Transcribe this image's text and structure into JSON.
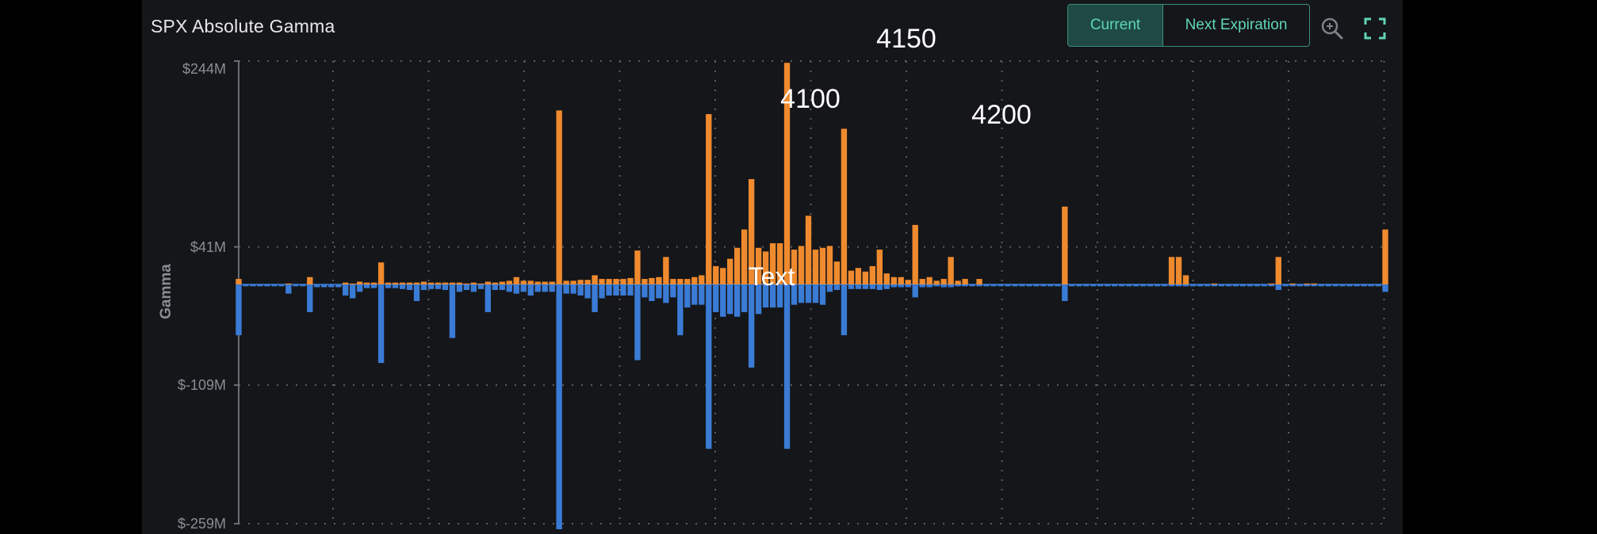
{
  "header": {
    "title": "SPX Absolute Gamma",
    "toggle": {
      "current_label": "Current",
      "next_label": "Next Expiration"
    }
  },
  "icons": {
    "zoom": "zoom-in-icon",
    "fullscreen": "fullscreen-icon"
  },
  "colors": {
    "positive": "#ef8a2e",
    "negative": "#3a7bd5",
    "accent": "#5fd6b8",
    "background": "#151619"
  },
  "chart_data": {
    "type": "bar",
    "title": "SPX Absolute Gamma",
    "ylabel": "Gamma",
    "xlabel": "",
    "yticks": [
      {
        "value": 244,
        "label": "$244M"
      },
      {
        "value": 41,
        "label": "$41M"
      },
      {
        "value": -109,
        "label": "$-109M"
      },
      {
        "value": -259,
        "label": "$-259M"
      }
    ],
    "ylim": [
      -259,
      244
    ],
    "grid": true,
    "annotations": [
      {
        "label": "4150",
        "strike": 4150
      },
      {
        "label": "4100",
        "strike": 4100
      },
      {
        "label": "4200",
        "strike": 4200
      },
      {
        "label": "Text"
      }
    ],
    "series": [
      {
        "color": "#ef8a2e",
        "values": [
          6,
          0,
          0,
          0,
          0,
          0,
          0,
          1,
          0,
          0,
          8,
          0,
          0,
          0,
          0,
          2,
          1,
          3,
          2,
          2,
          24,
          2,
          2,
          2,
          2,
          2,
          3,
          2,
          2,
          2,
          2,
          2,
          1,
          2,
          1,
          3,
          2,
          3,
          4,
          8,
          4,
          4,
          3,
          3,
          3,
          190,
          4,
          4,
          5,
          5,
          10,
          6,
          6,
          6,
          6,
          7,
          37,
          6,
          7,
          8,
          30,
          6,
          6,
          6,
          8,
          10,
          186,
          20,
          18,
          28,
          40,
          60,
          115,
          40,
          36,
          45,
          45,
          242,
          38,
          42,
          75,
          38,
          40,
          42,
          25,
          170,
          15,
          18,
          14,
          20,
          38,
          12,
          8,
          8,
          5,
          65,
          6,
          8,
          4,
          6,
          30,
          4,
          6,
          0,
          6,
          0,
          0,
          0,
          0,
          0,
          0,
          0,
          0,
          0,
          0,
          0,
          85,
          0,
          0,
          0,
          0,
          0,
          0,
          0,
          0,
          0,
          0,
          0,
          0,
          0,
          0,
          30,
          30,
          10,
          0,
          0,
          0,
          1,
          0,
          0,
          0,
          0,
          0,
          0,
          0,
          1,
          30,
          0,
          1,
          0,
          1,
          1,
          0,
          0,
          0,
          0,
          0,
          0,
          0,
          0,
          0,
          60
        ]
      },
      {
        "color": "#3a7bd5",
        "values": [
          -55,
          -2,
          -2,
          -2,
          -2,
          -2,
          -2,
          -10,
          -2,
          -2,
          -30,
          -3,
          -3,
          -3,
          -3,
          -12,
          -15,
          -8,
          -4,
          -4,
          -85,
          -4,
          -4,
          -5,
          -6,
          -18,
          -6,
          -5,
          -5,
          -6,
          -58,
          -8,
          -6,
          -8,
          -5,
          -30,
          -6,
          -6,
          -8,
          -10,
          -8,
          -12,
          -8,
          -8,
          -8,
          -265,
          -10,
          -10,
          -12,
          -15,
          -30,
          -15,
          -12,
          -12,
          -12,
          -12,
          -82,
          -14,
          -18,
          -15,
          -20,
          -14,
          -55,
          -25,
          -22,
          -22,
          -178,
          -30,
          -35,
          -32,
          -35,
          -30,
          -90,
          -32,
          -25,
          -25,
          -25,
          -178,
          -22,
          -20,
          -20,
          -20,
          -22,
          -8,
          -6,
          -55,
          -5,
          -5,
          -5,
          -5,
          -6,
          -5,
          -3,
          -3,
          -3,
          -14,
          -3,
          -3,
          -2,
          -3,
          -3,
          -2,
          -2,
          -2,
          -2,
          -2,
          -2,
          -2,
          -2,
          -2,
          -2,
          -2,
          -2,
          -2,
          -2,
          -2,
          -18,
          -2,
          -2,
          -2,
          -2,
          -2,
          -2,
          -2,
          -2,
          -2,
          -2,
          -2,
          -2,
          -2,
          -2,
          -2,
          -2,
          -2,
          -2,
          -2,
          -2,
          -2,
          -2,
          -2,
          -2,
          -2,
          -2,
          -2,
          -2,
          -2,
          -6,
          -2,
          -2,
          -2,
          -2,
          -2,
          -2,
          -2,
          -2,
          -2,
          -2,
          -2,
          -2,
          -2,
          -2,
          -8
        ]
      }
    ]
  }
}
